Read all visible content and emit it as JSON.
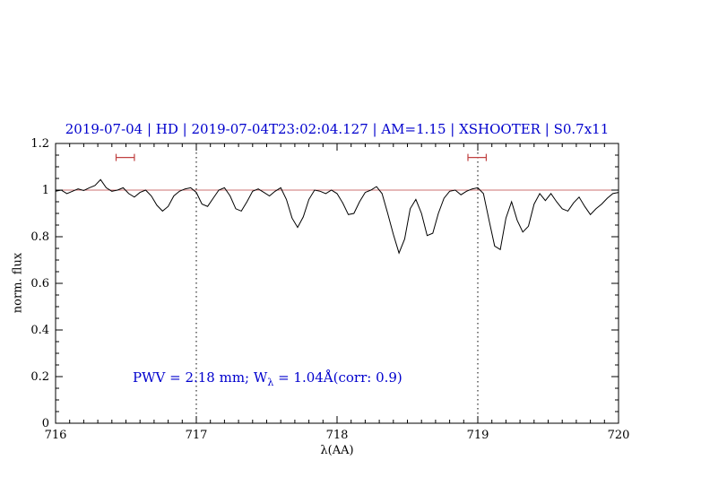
{
  "title": "2019-07-04 | HD | 2019-07-04T23:02:04.127 | AM=1.15 | XSHOOTER | S0.7x11",
  "annotation": {
    "prefix": "PWV = 2.18 mm; W",
    "sub": "λ",
    "suffix": " = 1.04Å(corr: 0.9)"
  },
  "colors": {
    "title_blue": "#0000cd",
    "annotation_blue": "#0000cd",
    "continuum_red": "#cc7070",
    "marker_red": "#c04040",
    "spectrum_black": "#000000",
    "axis_black": "#000000"
  },
  "chart_data": {
    "type": "line",
    "title": "2019-07-04 | HD | 2019-07-04T23:02:04.127 | AM=1.15 | XSHOOTER | S0.7x11",
    "xlabel": "λ(AA)",
    "ylabel": "norm. flux",
    "xlim": [
      716,
      720
    ],
    "ylim": [
      0,
      1.2
    ],
    "x_major_ticks": [
      716,
      717,
      718,
      719,
      720
    ],
    "x_tick_labels": [
      "716",
      "717",
      "718",
      "719",
      "720"
    ],
    "x_minor_step": 0.1,
    "y_major_ticks": [
      0,
      0.2,
      0.4,
      0.6,
      0.8,
      1,
      1.2
    ],
    "y_tick_labels": [
      "0",
      "0.2",
      "0.4",
      "0.6",
      "0.8",
      "1",
      "1.2"
    ],
    "y_minor_step": 0.05,
    "grid": false,
    "legend": "none",
    "reference_line_y": 1.0,
    "dotted_vlines": [
      717,
      719
    ],
    "range_markers": [
      {
        "x1": 716.43,
        "x2": 716.56,
        "y": 1.14
      },
      {
        "x1": 718.93,
        "x2": 719.06,
        "y": 1.14
      }
    ],
    "annotation_text": "PWV = 2.18 mm; Wλ = 1.04Å(corr: 0.9)",
    "series": [
      {
        "name": "telluric-spectrum",
        "x_start": 716.0,
        "x_step": 0.04,
        "y": [
          0.995,
          1.0,
          0.985,
          0.995,
          1.005,
          0.998,
          1.01,
          1.02,
          1.045,
          1.01,
          0.995,
          1.0,
          1.01,
          0.985,
          0.97,
          0.99,
          1.0,
          0.975,
          0.935,
          0.91,
          0.93,
          0.975,
          0.995,
          1.005,
          1.01,
          0.99,
          0.94,
          0.93,
          0.965,
          1.0,
          1.01,
          0.975,
          0.92,
          0.91,
          0.95,
          0.995,
          1.005,
          0.99,
          0.975,
          0.995,
          1.01,
          0.96,
          0.88,
          0.84,
          0.885,
          0.96,
          1.0,
          0.995,
          0.985,
          1.0,
          0.985,
          0.945,
          0.895,
          0.9,
          0.95,
          0.99,
          1.0,
          1.015,
          0.985,
          0.9,
          0.81,
          0.73,
          0.79,
          0.92,
          0.96,
          0.9,
          0.805,
          0.815,
          0.9,
          0.965,
          0.995,
          1.0,
          0.98,
          0.995,
          1.005,
          1.01,
          0.985,
          0.87,
          0.76,
          0.745,
          0.88,
          0.95,
          0.87,
          0.82,
          0.845,
          0.94,
          0.985,
          0.955,
          0.985,
          0.95,
          0.92,
          0.91,
          0.945,
          0.97,
          0.93,
          0.895,
          0.92,
          0.94,
          0.965,
          0.985,
          0.99
        ]
      }
    ]
  }
}
